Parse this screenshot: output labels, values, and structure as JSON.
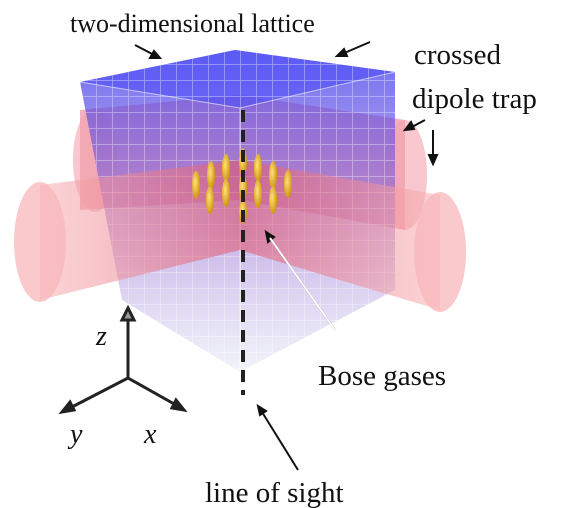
{
  "labels": {
    "lattice": "two-dimensional lattice",
    "trap_line1": "crossed",
    "trap_line2": "dipole trap",
    "gases": "Bose gases",
    "sight": "line of sight"
  },
  "axes": {
    "z": "z",
    "y": "y",
    "x": "x"
  }
}
